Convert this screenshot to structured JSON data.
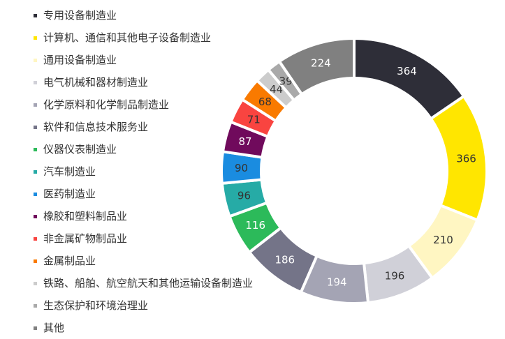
{
  "chart_data": {
    "type": "pie",
    "donut": true,
    "legend_position": "left",
    "categories": [
      "专用设备制造业",
      "计算机、通信和其他电子设备制造业",
      "通用设备制造业",
      "电气机械和器材制造业",
      "化学原料和化学制品制造业",
      "软件和信息技术服务业",
      "仪器仪表制造业",
      "汽车制造业",
      "医药制造业",
      "橡胶和塑料制品业",
      "非金属矿物制品业",
      "金属制品业",
      "铁路、船舶、航空航天和其他运输设备制造业",
      "生态保护和环境治理业",
      "其他"
    ],
    "values": [
      364,
      366,
      210,
      196,
      194,
      186,
      116,
      96,
      90,
      87,
      71,
      68,
      44,
      39,
      224
    ],
    "colors": [
      "#2e2e38",
      "#ffe600",
      "#fff6c2",
      "#d0d0d8",
      "#a4a4b4",
      "#747488",
      "#2cba5a",
      "#26aba6",
      "#1a8ce0",
      "#700a5c",
      "#f94440",
      "#f97a00",
      "#cccccc",
      "#a9a9a9",
      "#808080"
    ],
    "label_colors": [
      "#ffffff",
      "#333333",
      "#333333",
      "#333333",
      "#ffffff",
      "#ffffff",
      "#ffffff",
      "#333333",
      "#333333",
      "#ffffff",
      "#333333",
      "#333333",
      "#333333",
      "#333333",
      "#ffffff"
    ]
  }
}
